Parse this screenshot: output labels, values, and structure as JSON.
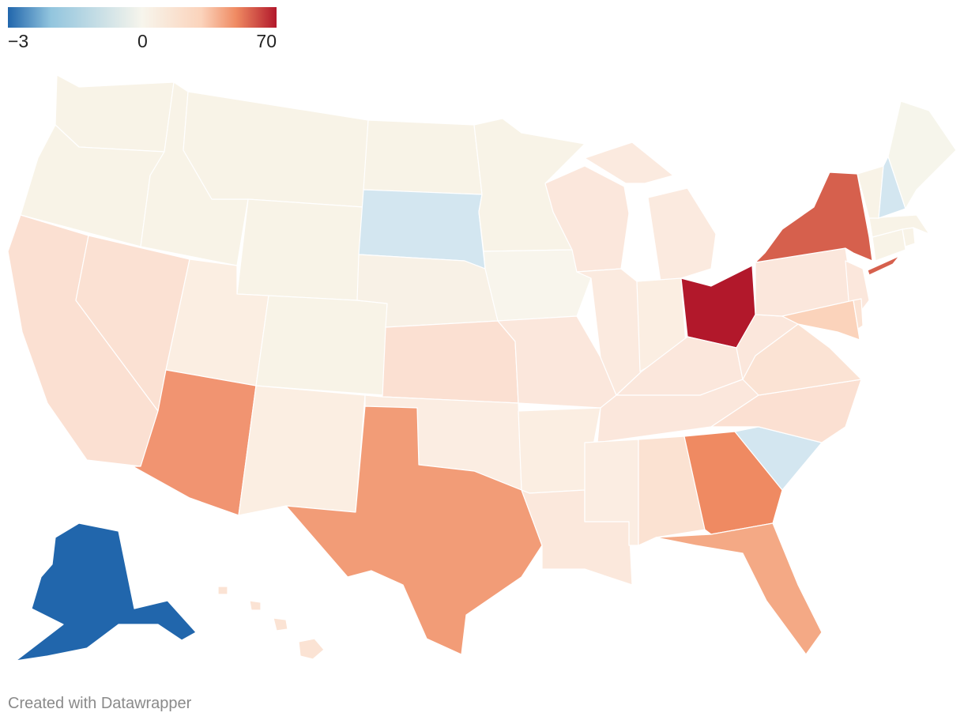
{
  "legend": {
    "min_label": "−3",
    "mid_label": "0",
    "max_label": "70",
    "colors": [
      "#2166ac",
      "#92c5de",
      "#f7f5ec",
      "#fbd3bb",
      "#ef8a62",
      "#b2182b"
    ]
  },
  "footer": {
    "credit": "Created with Datawrapper"
  },
  "states": [
    {
      "id": "WA",
      "color": "#f8f3e7"
    },
    {
      "id": "OR",
      "color": "#f8f3e7"
    },
    {
      "id": "CA",
      "color": "#fbe0d2"
    },
    {
      "id": "NV",
      "color": "#fbe1d3"
    },
    {
      "id": "ID",
      "color": "#f8f3e7"
    },
    {
      "id": "MT",
      "color": "#f8f3e7"
    },
    {
      "id": "WY",
      "color": "#f8f3e7"
    },
    {
      "id": "UT",
      "color": "#fbeee2"
    },
    {
      "id": "AZ",
      "color": "#f19471"
    },
    {
      "id": "CO",
      "color": "#f8f3e7"
    },
    {
      "id": "NM",
      "color": "#fbeee2"
    },
    {
      "id": "ND",
      "color": "#f8f3e7"
    },
    {
      "id": "SD",
      "color": "#d3e6f0"
    },
    {
      "id": "NE",
      "color": "#f8f1e6"
    },
    {
      "id": "KS",
      "color": "#fbe0d2"
    },
    {
      "id": "OK",
      "color": "#fbede2"
    },
    {
      "id": "TX",
      "color": "#f29c77"
    },
    {
      "id": "MN",
      "color": "#f8f3e7"
    },
    {
      "id": "IA",
      "color": "#f8f5ec"
    },
    {
      "id": "MO",
      "color": "#fbe7dc"
    },
    {
      "id": "AR",
      "color": "#fbeee2"
    },
    {
      "id": "LA",
      "color": "#fbe8dc"
    },
    {
      "id": "WI",
      "color": "#fbe7dc"
    },
    {
      "id": "IL",
      "color": "#fbeadf"
    },
    {
      "id": "MI",
      "color": "#fbeadf"
    },
    {
      "id": "IN",
      "color": "#fbeee2"
    },
    {
      "id": "OH",
      "color": "#b2182b"
    },
    {
      "id": "KY",
      "color": "#fbe7dc"
    },
    {
      "id": "TN",
      "color": "#fbe7dc"
    },
    {
      "id": "MS",
      "color": "#fbede2"
    },
    {
      "id": "AL",
      "color": "#fbe2d2"
    },
    {
      "id": "GA",
      "color": "#ef8a62"
    },
    {
      "id": "FL",
      "color": "#f4a985"
    },
    {
      "id": "SC",
      "color": "#d3e6f0"
    },
    {
      "id": "NC",
      "color": "#fbe0d2"
    },
    {
      "id": "VA",
      "color": "#fbe3d4"
    },
    {
      "id": "WV",
      "color": "#fbe7dc"
    },
    {
      "id": "PA",
      "color": "#fbe7dc"
    },
    {
      "id": "NY",
      "color": "#d6604d"
    },
    {
      "id": "NJ",
      "color": "#fbe7dc"
    },
    {
      "id": "MD",
      "color": "#fbd3bb"
    },
    {
      "id": "DE",
      "color": "#fbe3d4"
    },
    {
      "id": "CT",
      "color": "#f8f3e7"
    },
    {
      "id": "RI",
      "color": "#f8f3e7"
    },
    {
      "id": "MA",
      "color": "#f8f3e7"
    },
    {
      "id": "VT",
      "color": "#f8f3e7"
    },
    {
      "id": "NH",
      "color": "#d3e6f0"
    },
    {
      "id": "ME",
      "color": "#f6f5eb"
    },
    {
      "id": "AK",
      "color": "#2166ac"
    },
    {
      "id": "HI",
      "color": "#fbe3d4"
    }
  ]
}
